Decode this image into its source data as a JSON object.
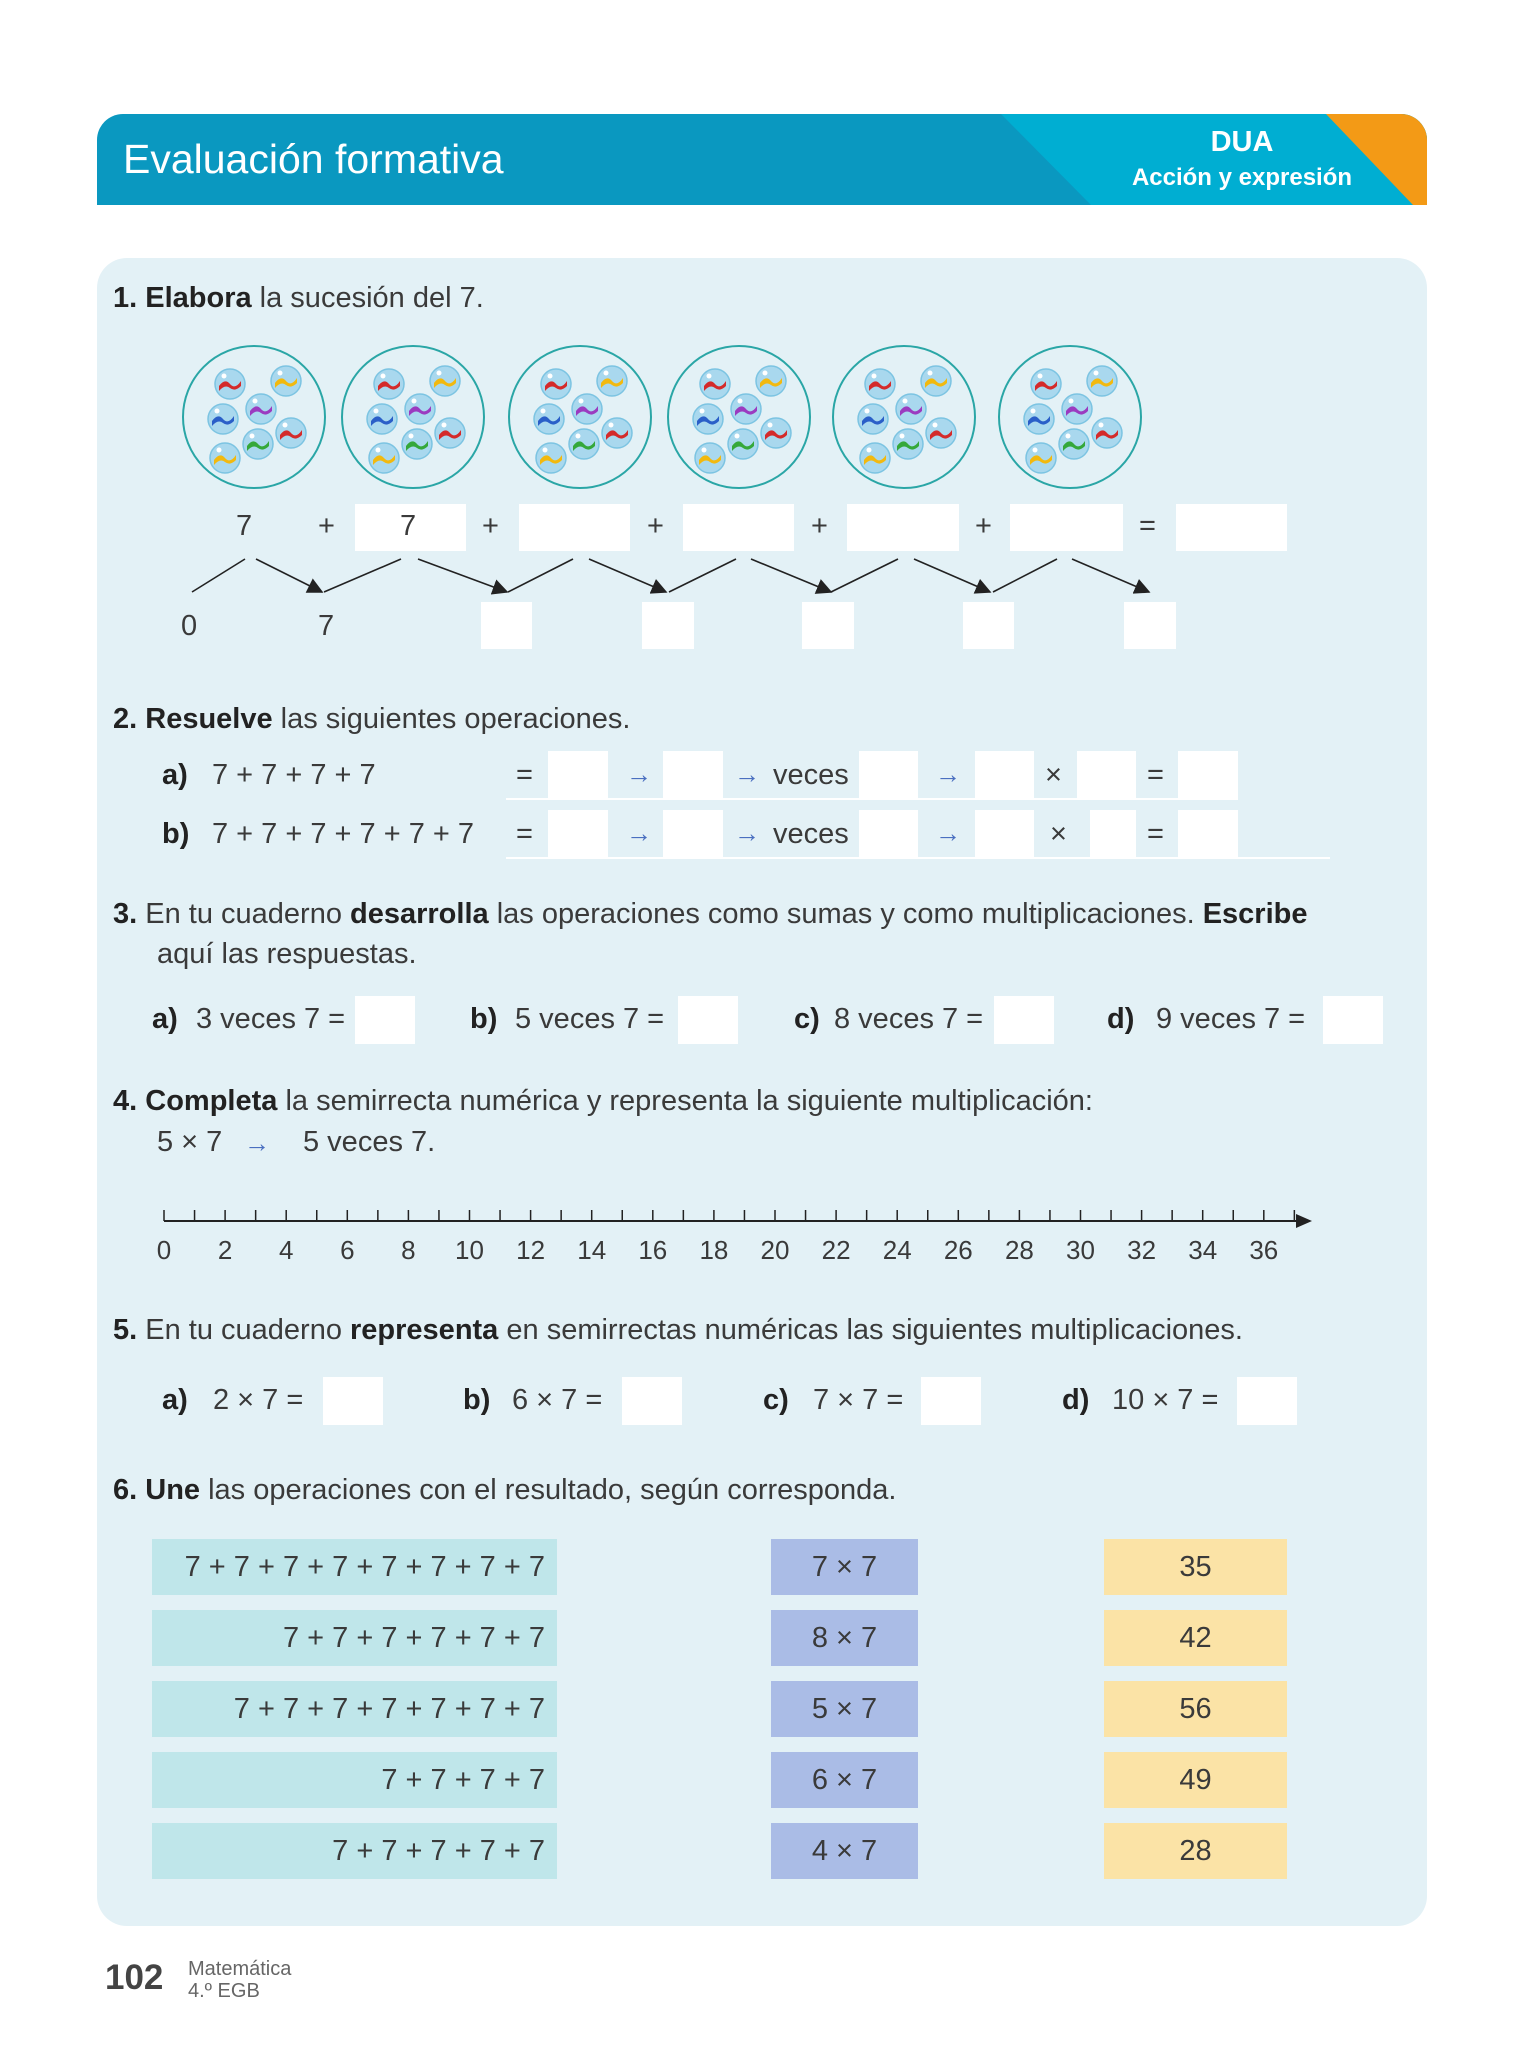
{
  "header": {
    "title": "Evaluación formativa",
    "badge_title": "DUA",
    "badge_subtitle": "Acción y expresión",
    "colors": {
      "main": "#0a98c0",
      "light": "#00aed2",
      "accent": "#f39a16"
    }
  },
  "q1": {
    "number": "1.",
    "bold": "Elabora",
    "text": " la sucesión del 7.",
    "groups": 6,
    "marbles_per_group": 7,
    "sum_first": "7",
    "sum_second": "7",
    "plus": "+",
    "equals": "=",
    "line_start": "0",
    "line_second": "7"
  },
  "q2": {
    "number": "2.",
    "bold": "Resuelve",
    "text": " las siguientes operaciones.",
    "rows": [
      {
        "label": "a)",
        "expr": "7 + 7 + 7 + 7"
      },
      {
        "label": "b)",
        "expr": "7 + 7 + 7 + 7 + 7 + 7"
      }
    ],
    "equals": "=",
    "veces": "veces",
    "times": "×"
  },
  "q3": {
    "number": "3.",
    "pre": "En tu cuaderno ",
    "bold1": "desarrolla",
    "mid": " las operaciones como sumas y como multiplicaciones. ",
    "bold2": "Escribe",
    "line2": "aquí las respuestas.",
    "items": [
      {
        "label": "a)",
        "text": "3 veces 7 ="
      },
      {
        "label": "b)",
        "text": "5 veces 7 ="
      },
      {
        "label": "c)",
        "text": "8 veces 7 ="
      },
      {
        "label": "d)",
        "text": "9 veces 7 ="
      }
    ]
  },
  "q4": {
    "number": "4.",
    "bold": "Completa",
    "text": " la semirrecta numérica y representa la siguiente multiplicación:",
    "expr": "5 × 7",
    "expr_result": "5 veces 7.",
    "number_line": {
      "min": 0,
      "max": 36,
      "label_step": 2,
      "tick_step": 1,
      "labels": [
        "0",
        "2",
        "4",
        "6",
        "8",
        "10",
        "12",
        "14",
        "16",
        "18",
        "20",
        "22",
        "24",
        "26",
        "28",
        "30",
        "32",
        "34",
        "36"
      ]
    }
  },
  "q5": {
    "number": "5.",
    "pre": "En tu cuaderno ",
    "bold": "representa",
    "text": " en semirrectas numéricas las siguientes multiplicaciones.",
    "items": [
      {
        "label": "a)",
        "text": "2 × 7 ="
      },
      {
        "label": "b)",
        "text": "6 × 7 ="
      },
      {
        "label": "c)",
        "text": "7 × 7 ="
      },
      {
        "label": "d)",
        "text": "10 × 7 ="
      }
    ]
  },
  "q6": {
    "number": "6.",
    "bold": "Une",
    "text": " las operaciones con el resultado, según corresponda.",
    "sums": [
      "7 + 7 + 7 + 7 + 7 + 7 + 7 + 7",
      "7 + 7 + 7 + 7 + 7 + 7",
      "7 + 7 + 7 + 7 + 7 + 7 + 7",
      "7 + 7 + 7 + 7",
      "7 + 7 + 7 + 7 + 7"
    ],
    "products": [
      "7 × 7",
      "8 × 7",
      "5 × 7",
      "6 × 7",
      "4 × 7"
    ],
    "results": [
      "35",
      "42",
      "56",
      "49",
      "28"
    ]
  },
  "footer": {
    "page": "102",
    "subject": "Matemática",
    "grade": "4.º EGB"
  }
}
